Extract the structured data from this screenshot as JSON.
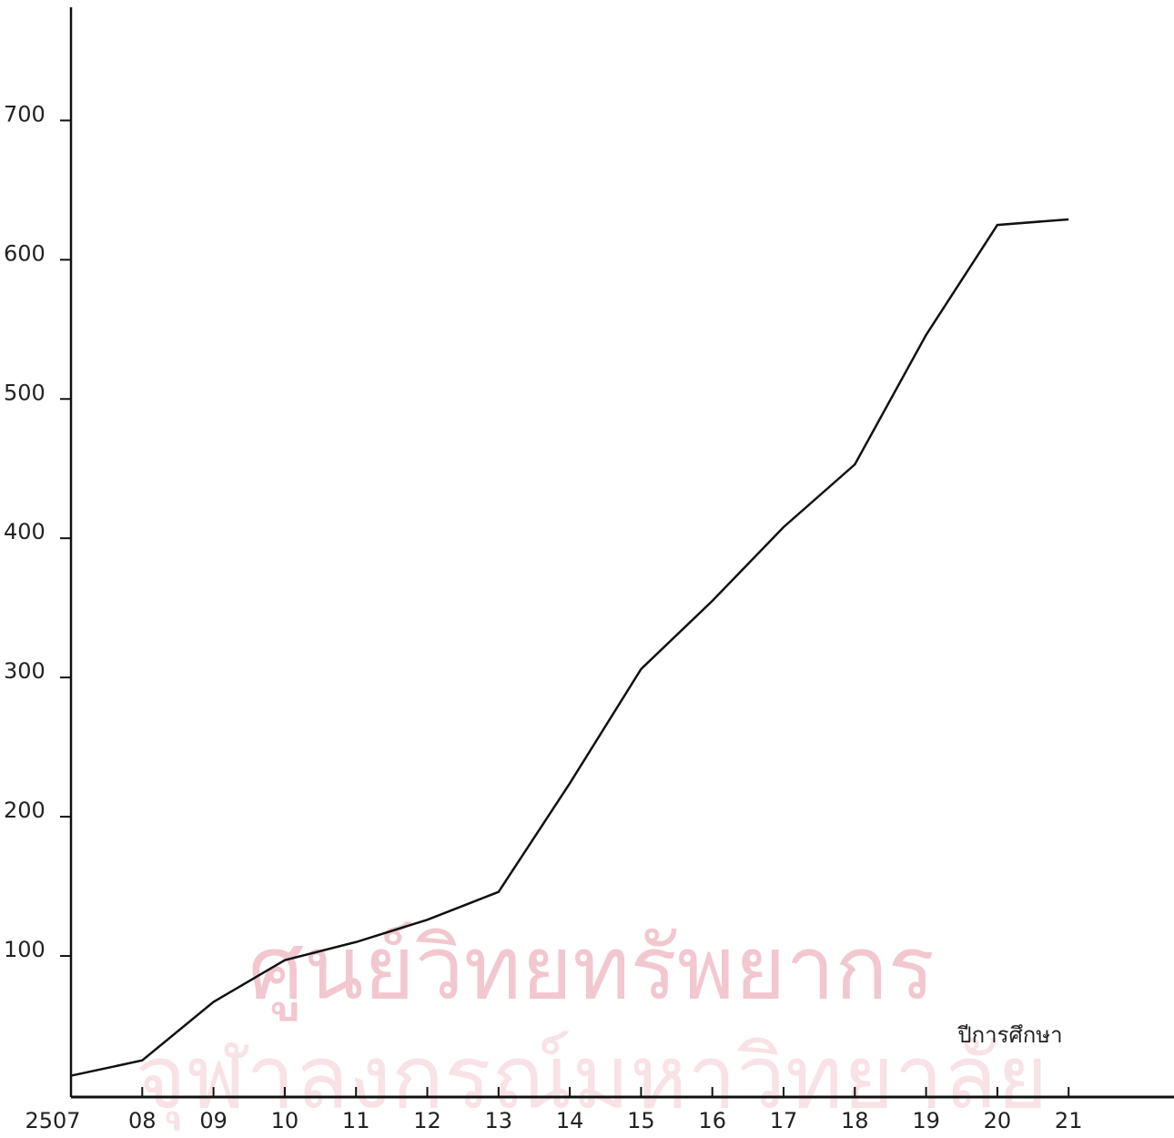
{
  "chart_data": {
    "type": "line",
    "x_label": "ปีการศึกษา",
    "watermark": [
      "ศูนย์วิทยทรัพยากร",
      "จุฬาลงกรณ์มหาวิทยาลัย"
    ],
    "categories": [
      "2507",
      "08",
      "09",
      "10",
      "11",
      "12",
      "13",
      "14",
      "15",
      "16",
      "17",
      "18",
      "19",
      "20",
      "21"
    ],
    "values": [
      14,
      25,
      67,
      97,
      110,
      126,
      146,
      224,
      306,
      355,
      408,
      453,
      546,
      625,
      629
    ],
    "color": "#111111",
    "ylim": [
      0,
      780
    ],
    "yticks": [
      100,
      200,
      300,
      400,
      500,
      600,
      700
    ]
  }
}
